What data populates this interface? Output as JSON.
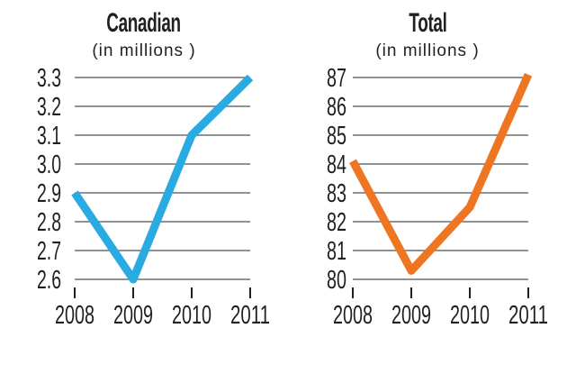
{
  "figure": {
    "background": "#ffffff",
    "text_color": "#231f20",
    "grid_color": "#6d6e71"
  },
  "chart_data": [
    {
      "type": "line",
      "title": "Canadian",
      "subtitle": "(in millions )",
      "x": [
        "2008",
        "2009",
        "2010",
        "2011"
      ],
      "values": [
        2.9,
        2.6,
        3.1,
        3.3
      ],
      "y_ticks": [
        "3.3",
        "3.2",
        "3.1",
        "3.0",
        "2.9",
        "2.8",
        "2.7",
        "2.6"
      ],
      "ylim": [
        2.6,
        3.3
      ],
      "line_color": "#29abe2",
      "grid": "horizontal",
      "legend": "none"
    },
    {
      "type": "line",
      "title": "Total",
      "subtitle": "(in millions )",
      "x": [
        "2008",
        "2009",
        "2010",
        "2011"
      ],
      "values": [
        84.1,
        80.3,
        82.5,
        87.1
      ],
      "y_ticks": [
        "87",
        "86",
        "85",
        "84",
        "83",
        "82",
        "81",
        "80"
      ],
      "ylim": [
        80,
        87
      ],
      "line_color": "#ee7623",
      "grid": "horizontal",
      "legend": "none"
    }
  ]
}
